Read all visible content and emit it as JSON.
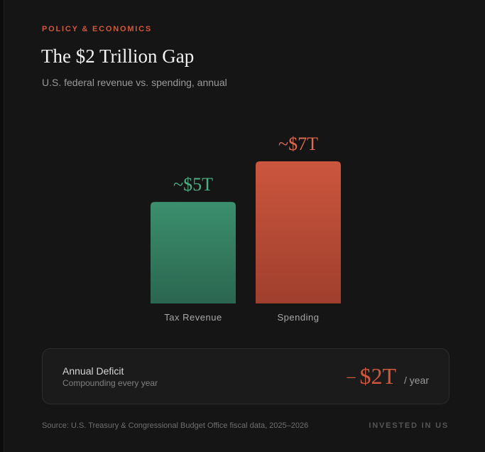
{
  "header": {
    "eyebrow": "POLICY & ECONOMICS",
    "title": "The $2 Trillion Gap",
    "subtitle": "U.S. federal revenue vs. spending, annual"
  },
  "chart_data": {
    "type": "bar",
    "title": "The $2 Trillion Gap",
    "categories": [
      "Tax Revenue",
      "Spending"
    ],
    "values": [
      5,
      7
    ],
    "value_labels": [
      "~$5T",
      "~$7T"
    ],
    "unit": "trillion USD",
    "ylim": [
      0,
      7
    ],
    "colors": [
      "#348b68",
      "#c8523b"
    ],
    "xlabel": "",
    "ylabel": "",
    "grid": false
  },
  "deficit": {
    "title": "Annual Deficit",
    "subtitle": "Compounding every year",
    "minus": "–",
    "value": "$2T",
    "unit": "/ year"
  },
  "footer": {
    "source": "Source: U.S. Treasury & Congressional Budget Office fiscal data, 2025–2026",
    "brand": "INVESTED IN US"
  }
}
